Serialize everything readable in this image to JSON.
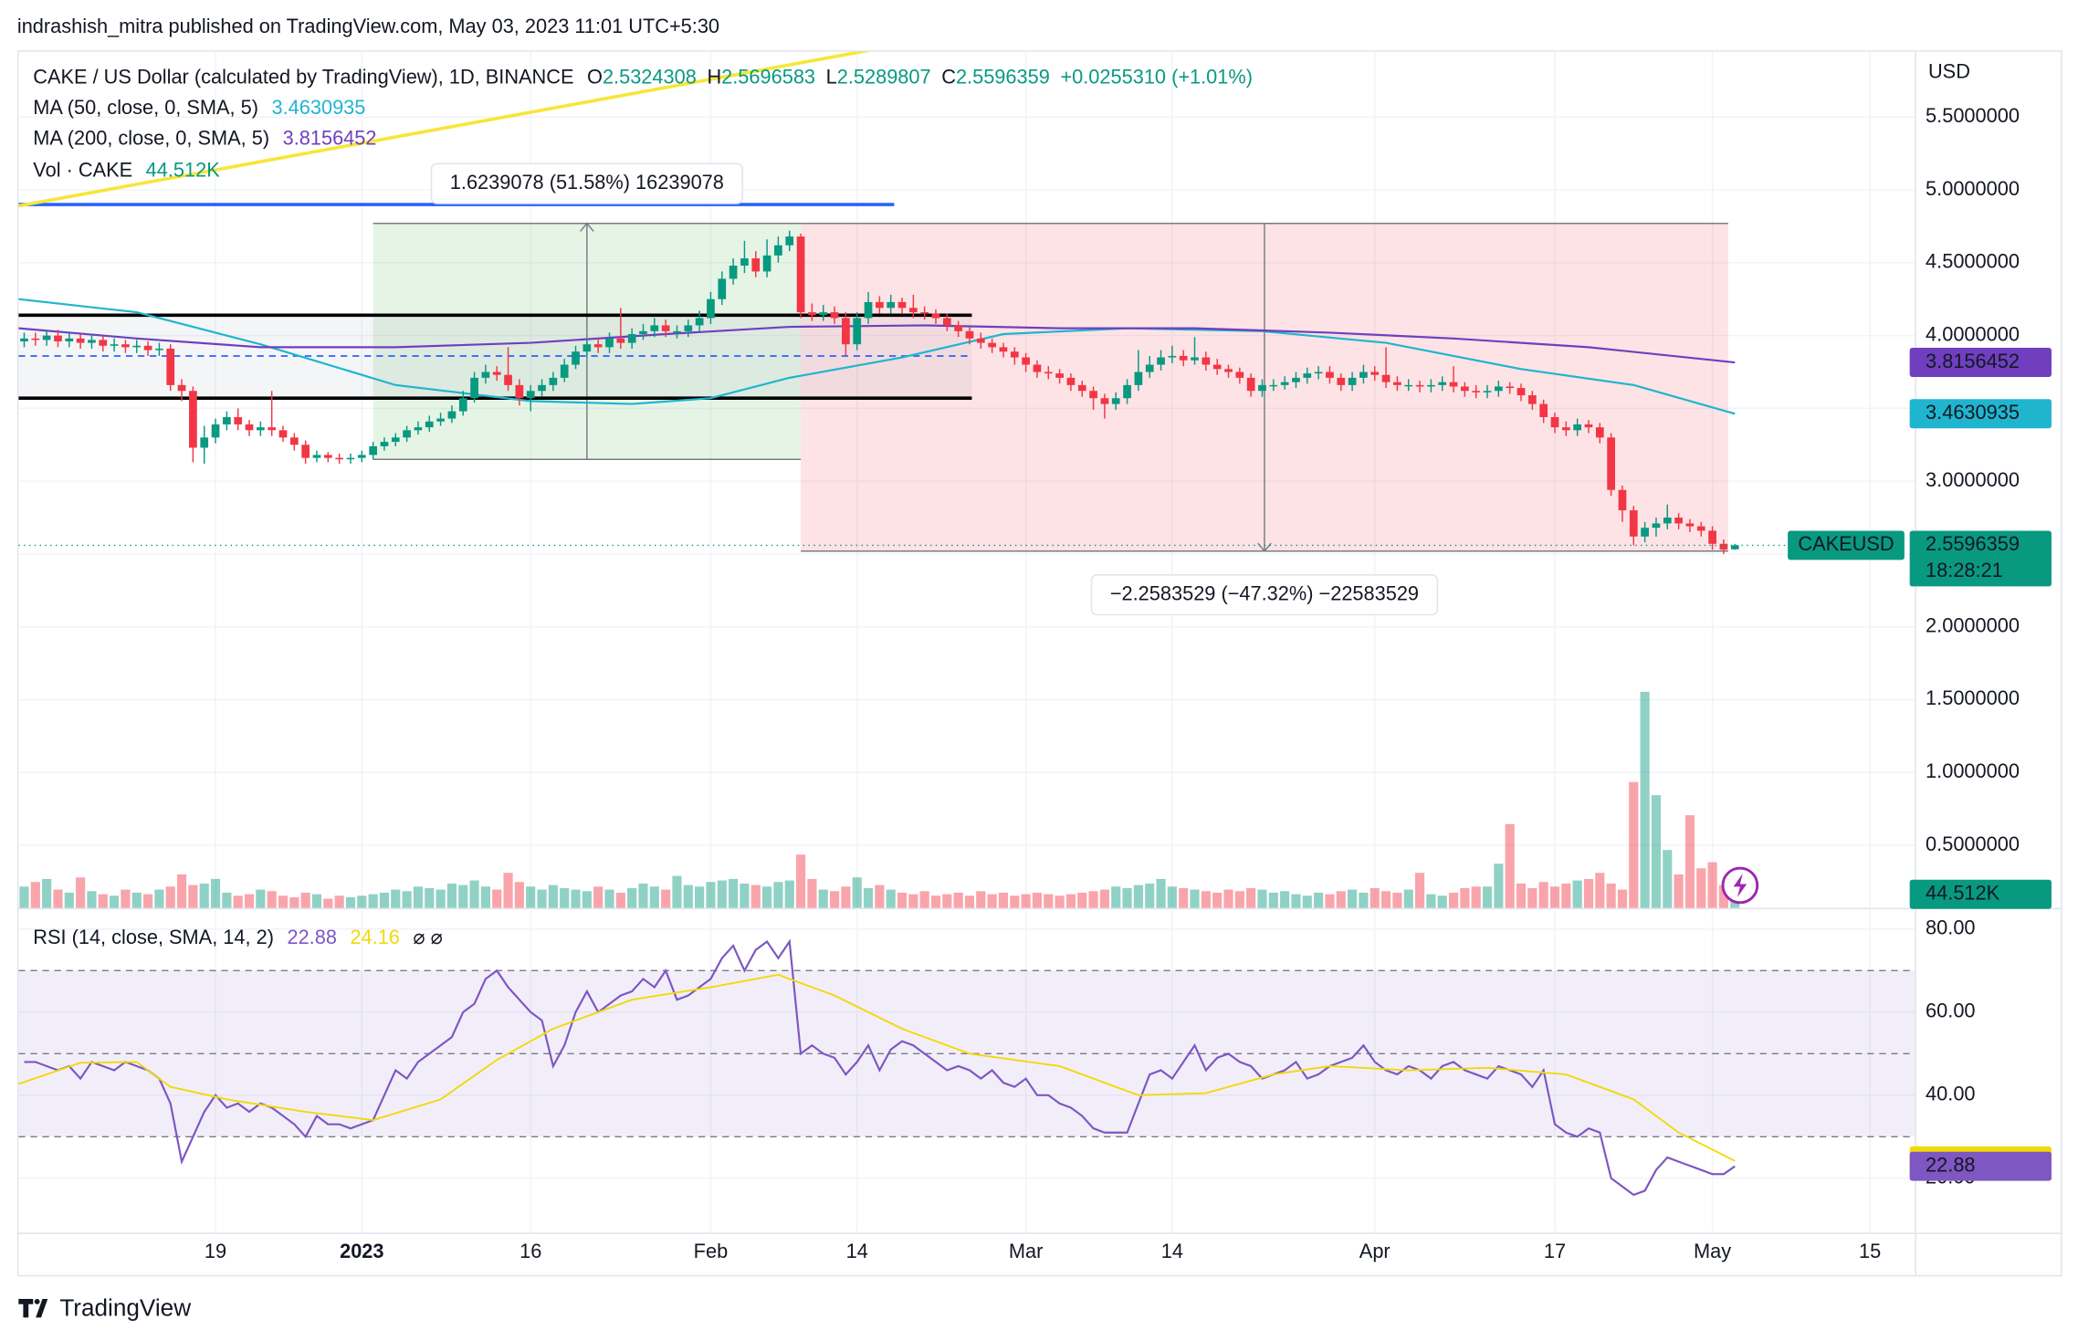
{
  "header": {
    "published": "indrashish_mitra published on TradingView.com, May 03, 2023 11:01 UTC+5:30",
    "brand": "TradingView"
  },
  "chart_data": {
    "type": "candlestick",
    "title": "CAKE / US Dollar (calculated by TradingView), 1D, BINANCE",
    "ohlc_labels": [
      "O",
      "H",
      "L",
      "C"
    ],
    "change_label": "+0.0255310 (+1.01%)",
    "currency": "USD",
    "symbol": "CAKEUSD",
    "countdown": "18:28:21",
    "up_color": "#089981",
    "down_color": "#f23645",
    "grid": true,
    "xlim": [
      -0.5,
      168
    ],
    "xticks": [
      {
        "value": 17,
        "label": "19"
      },
      {
        "value": 30,
        "label": "2023"
      },
      {
        "value": 45,
        "label": "16"
      },
      {
        "value": 61,
        "label": "Feb"
      },
      {
        "value": 74,
        "label": "14"
      },
      {
        "value": 89,
        "label": "Mar"
      },
      {
        "value": 102,
        "label": "14"
      },
      {
        "value": 120,
        "label": "Apr"
      },
      {
        "value": 136,
        "label": "17"
      },
      {
        "value": 150,
        "label": "May"
      },
      {
        "value": 164,
        "label": "15"
      }
    ],
    "ylim": [
      0.07,
      5.94
    ],
    "yticks": [
      {
        "value": 0.5,
        "label": "0.5000000"
      },
      {
        "value": 1,
        "label": "1.0000000"
      },
      {
        "value": 1.5,
        "label": "1.5000000"
      },
      {
        "value": 2,
        "label": "2.0000000"
      },
      {
        "value": 2.5,
        "label": "2.5000000"
      },
      {
        "value": 3,
        "label": "3.0000000"
      },
      {
        "value": 3.5,
        "label": "3.5000000"
      },
      {
        "value": 4,
        "label": "4.0000000"
      },
      {
        "value": 4.5,
        "label": "4.5000000"
      },
      {
        "value": 5,
        "label": "5.0000000"
      },
      {
        "value": 5.5,
        "label": "5.5000000"
      }
    ],
    "open": [
      3.96,
      3.98,
      3.97,
      4.0,
      3.96,
      3.98,
      3.95,
      3.97,
      3.93,
      3.94,
      3.92,
      3.93,
      3.9,
      3.91,
      3.66,
      3.62,
      3.23,
      3.3,
      3.39,
      3.44,
      3.39,
      3.35,
      3.37,
      3.35,
      3.3,
      3.25,
      3.16,
      3.18,
      3.16,
      3.15,
      3.16,
      3.18,
      3.24,
      3.27,
      3.3,
      3.35,
      3.37,
      3.41,
      3.43,
      3.48,
      3.57,
      3.71,
      3.75,
      3.73,
      3.66,
      3.57,
      3.62,
      3.66,
      3.71,
      3.8,
      3.89,
      3.94,
      3.92,
      3.98,
      3.95,
      4.01,
      4.03,
      4.07,
      4.03,
      4.03,
      4.07,
      4.12,
      4.25,
      4.39,
      4.48,
      4.53,
      4.44,
      4.55,
      4.62,
      4.68,
      4.16,
      4.14,
      4.16,
      4.12,
      3.94,
      4.12,
      4.23,
      4.19,
      4.23,
      4.19,
      4.16,
      4.15,
      4.12,
      4.07,
      4.03,
      3.98,
      3.95,
      3.92,
      3.89,
      3.85,
      3.8,
      3.75,
      3.74,
      3.71,
      3.66,
      3.62,
      3.57,
      3.53,
      3.57,
      3.66,
      3.75,
      3.8,
      3.85,
      3.86,
      3.83,
      3.85,
      3.8,
      3.77,
      3.75,
      3.71,
      3.62,
      3.66,
      3.66,
      3.68,
      3.71,
      3.74,
      3.75,
      3.71,
      3.66,
      3.71,
      3.75,
      3.73,
      3.68,
      3.66,
      3.66,
      3.65,
      3.66,
      3.68,
      3.65,
      3.62,
      3.61,
      3.62,
      3.65,
      3.64,
      3.59,
      3.53,
      3.44,
      3.37,
      3.35,
      3.39,
      3.37,
      3.3,
      2.94,
      2.8,
      2.62,
      2.68,
      2.71,
      2.75,
      2.71,
      2.69,
      2.66,
      2.57,
      2.5324308
    ],
    "high": [
      4.02,
      4.02,
      4.04,
      4.04,
      4.02,
      4.01,
      4.01,
      4.0,
      3.98,
      3.97,
      3.97,
      3.96,
      3.95,
      3.94,
      3.7,
      3.65,
      3.38,
      3.43,
      3.48,
      3.5,
      3.42,
      3.41,
      3.62,
      3.38,
      3.33,
      3.28,
      3.21,
      3.2,
      3.19,
      3.19,
      3.21,
      3.27,
      3.3,
      3.33,
      3.38,
      3.41,
      3.45,
      3.47,
      3.52,
      3.62,
      3.75,
      3.8,
      3.79,
      3.92,
      3.7,
      3.66,
      3.7,
      3.75,
      3.84,
      3.93,
      3.98,
      3.98,
      4.02,
      4.19,
      4.05,
      4.08,
      4.12,
      4.11,
      4.07,
      4.11,
      4.17,
      4.3,
      4.44,
      4.53,
      4.65,
      4.58,
      4.66,
      4.68,
      4.72,
      4.7,
      4.22,
      4.21,
      4.2,
      4.16,
      4.16,
      4.3,
      4.27,
      4.28,
      4.26,
      4.28,
      4.2,
      4.18,
      4.15,
      4.1,
      4.06,
      4.02,
      3.98,
      3.95,
      3.92,
      3.88,
      3.83,
      3.79,
      3.77,
      3.74,
      3.69,
      3.65,
      3.6,
      3.61,
      3.7,
      3.9,
      3.86,
      3.9,
      3.93,
      3.9,
      3.99,
      3.89,
      3.84,
      3.8,
      3.78,
      3.74,
      3.7,
      3.7,
      3.72,
      3.75,
      3.78,
      3.79,
      3.79,
      3.74,
      3.75,
      3.8,
      3.79,
      3.92,
      3.72,
      3.7,
      3.69,
      3.7,
      3.72,
      3.79,
      3.68,
      3.66,
      3.66,
      3.69,
      3.68,
      3.67,
      3.62,
      3.56,
      3.47,
      3.41,
      3.43,
      3.42,
      3.4,
      3.33,
      2.97,
      2.83,
      2.72,
      2.75,
      2.84,
      2.78,
      2.74,
      2.72,
      2.69,
      2.6,
      2.5696583
    ],
    "low": [
      3.92,
      3.93,
      3.93,
      3.92,
      3.92,
      3.91,
      3.91,
      3.89,
      3.89,
      3.88,
      3.88,
      3.86,
      3.86,
      3.62,
      3.55,
      3.13,
      3.12,
      3.26,
      3.35,
      3.35,
      3.31,
      3.31,
      3.31,
      3.27,
      3.21,
      3.12,
      3.13,
      3.13,
      3.12,
      3.12,
      3.13,
      3.15,
      3.21,
      3.24,
      3.27,
      3.32,
      3.34,
      3.38,
      3.4,
      3.45,
      3.54,
      3.67,
      3.69,
      3.62,
      3.52,
      3.48,
      3.58,
      3.62,
      3.68,
      3.77,
      3.85,
      3.88,
      3.88,
      3.91,
      3.91,
      3.97,
      3.99,
      3.99,
      3.98,
      3.99,
      4.03,
      4.08,
      4.21,
      4.35,
      4.43,
      4.4,
      4.4,
      4.5,
      4.58,
      4.12,
      4.1,
      4.1,
      4.08,
      3.86,
      3.9,
      4.08,
      4.15,
      4.15,
      4.15,
      4.12,
      4.11,
      4.08,
      4.03,
      3.99,
      3.94,
      3.91,
      3.88,
      3.85,
      3.8,
      3.75,
      3.71,
      3.7,
      3.67,
      3.62,
      3.58,
      3.49,
      3.43,
      3.49,
      3.53,
      3.62,
      3.71,
      3.76,
      3.81,
      3.79,
      3.8,
      3.76,
      3.73,
      3.71,
      3.67,
      3.58,
      3.58,
      3.62,
      3.63,
      3.64,
      3.67,
      3.7,
      3.67,
      3.62,
      3.62,
      3.67,
      3.69,
      3.64,
      3.62,
      3.62,
      3.61,
      3.61,
      3.62,
      3.61,
      3.58,
      3.57,
      3.57,
      3.58,
      3.6,
      3.55,
      3.49,
      3.4,
      3.33,
      3.31,
      3.31,
      3.33,
      3.26,
      2.9,
      2.72,
      2.56,
      2.58,
      2.62,
      2.67,
      2.67,
      2.65,
      2.62,
      2.53,
      2.5,
      2.5289807
    ],
    "close": [
      3.98,
      3.97,
      4.0,
      3.96,
      3.98,
      3.95,
      3.97,
      3.93,
      3.94,
      3.92,
      3.93,
      3.9,
      3.91,
      3.66,
      3.62,
      3.23,
      3.3,
      3.39,
      3.44,
      3.39,
      3.35,
      3.37,
      3.35,
      3.3,
      3.25,
      3.16,
      3.18,
      3.16,
      3.15,
      3.16,
      3.18,
      3.24,
      3.27,
      3.3,
      3.35,
      3.37,
      3.41,
      3.43,
      3.48,
      3.57,
      3.71,
      3.75,
      3.73,
      3.66,
      3.57,
      3.62,
      3.66,
      3.71,
      3.8,
      3.89,
      3.94,
      3.92,
      3.98,
      3.95,
      4.01,
      4.03,
      4.07,
      4.03,
      4.03,
      4.07,
      4.12,
      4.25,
      4.39,
      4.48,
      4.53,
      4.44,
      4.55,
      4.62,
      4.68,
      4.16,
      4.14,
      4.16,
      4.12,
      3.94,
      4.12,
      4.23,
      4.19,
      4.23,
      4.19,
      4.16,
      4.15,
      4.12,
      4.07,
      4.03,
      3.98,
      3.95,
      3.92,
      3.89,
      3.85,
      3.8,
      3.75,
      3.74,
      3.71,
      3.66,
      3.62,
      3.57,
      3.53,
      3.57,
      3.66,
      3.75,
      3.8,
      3.85,
      3.86,
      3.83,
      3.85,
      3.8,
      3.77,
      3.75,
      3.71,
      3.62,
      3.66,
      3.66,
      3.68,
      3.71,
      3.74,
      3.75,
      3.71,
      3.66,
      3.71,
      3.75,
      3.73,
      3.68,
      3.66,
      3.66,
      3.65,
      3.66,
      3.68,
      3.65,
      3.62,
      3.61,
      3.62,
      3.65,
      3.64,
      3.59,
      3.53,
      3.44,
      3.37,
      3.35,
      3.39,
      3.37,
      3.3,
      2.94,
      2.8,
      2.62,
      2.68,
      2.71,
      2.75,
      2.71,
      2.69,
      2.66,
      2.57,
      2.53,
      2.5596359
    ],
    "moving_averages": [
      {
        "name": "MA (50, close, 0, SMA, 5)",
        "color": "#1fb5cf",
        "x": [
          -0.5,
          10,
          21,
          33,
          45,
          54,
          61,
          68,
          78,
          87,
          98,
          110,
          121,
          133,
          143,
          152
        ],
        "values": [
          4.25,
          4.16,
          3.94,
          3.66,
          3.55,
          3.53,
          3.57,
          3.71,
          3.85,
          4.01,
          4.05,
          4.03,
          3.95,
          3.77,
          3.66,
          3.4630935
        ]
      },
      {
        "name": "MA (200, close, 0, SMA, 5)",
        "color": "#6f3fbf",
        "x": [
          -0.5,
          10,
          21,
          33,
          45,
          57,
          68,
          80,
          92,
          104,
          116,
          127,
          139,
          152
        ],
        "values": [
          4.05,
          3.98,
          3.92,
          3.92,
          3.95,
          4.01,
          4.06,
          4.07,
          4.05,
          4.05,
          4.02,
          3.98,
          3.92,
          3.8156452
        ]
      }
    ],
    "volume": {
      "name": "Vol · CAKE",
      "ylim": [
        0,
        1000
      ],
      "last_value_label": "44.512K",
      "values": [
        70,
        85,
        95,
        60,
        50,
        100,
        55,
        45,
        40,
        60,
        50,
        45,
        60,
        70,
        110,
        75,
        80,
        95,
        50,
        40,
        45,
        60,
        55,
        40,
        35,
        50,
        45,
        30,
        40,
        35,
        40,
        45,
        50,
        60,
        55,
        70,
        65,
        60,
        80,
        75,
        90,
        70,
        60,
        115,
        85,
        70,
        60,
        75,
        65,
        60,
        55,
        70,
        60,
        50,
        65,
        80,
        70,
        60,
        105,
        75,
        70,
        85,
        90,
        95,
        80,
        75,
        70,
        85,
        90,
        175,
        95,
        60,
        55,
        70,
        100,
        65,
        75,
        60,
        50,
        45,
        55,
        40,
        45,
        50,
        40,
        55,
        45,
        50,
        40,
        45,
        50,
        45,
        40,
        45,
        50,
        55,
        60,
        70,
        65,
        75,
        80,
        95,
        70,
        65,
        60,
        55,
        50,
        60,
        55,
        65,
        60,
        50,
        55,
        45,
        40,
        50,
        45,
        55,
        60,
        50,
        65,
        55,
        50,
        60,
        115,
        45,
        40,
        50,
        65,
        70,
        70,
        145,
        275,
        80,
        65,
        85,
        70,
        80,
        90,
        95,
        115,
        80,
        60,
        413,
        709,
        370,
        190,
        110,
        304,
        130,
        150,
        75,
        44.512
      ]
    },
    "rsi": {
      "name": "RSI (14, close, SMA, 14, 2)",
      "color": "#7e57c2",
      "extra": "⌀  ⌀",
      "ylim": [
        6.9,
        85.1
      ],
      "yticks": [
        {
          "value": 20,
          "label": "20.00"
        },
        {
          "value": 40,
          "label": "40.00"
        },
        {
          "value": 60,
          "label": "60.00"
        },
        {
          "value": 80,
          "label": "80.00"
        }
      ],
      "bands": [
        70,
        50,
        30
      ],
      "values": [
        48,
        48,
        47,
        46,
        47,
        44,
        48,
        47,
        46,
        48,
        47,
        46,
        44,
        38,
        24,
        30,
        36,
        40,
        37,
        38,
        36,
        38,
        37,
        35,
        33,
        30,
        35,
        33,
        33,
        32,
        33,
        34,
        40,
        46,
        44,
        48,
        50,
        52,
        54,
        60,
        62,
        68,
        70,
        66,
        63,
        60,
        58,
        47,
        52,
        60,
        65,
        60,
        62,
        64,
        65,
        68,
        66,
        70,
        63,
        64,
        66,
        68,
        73,
        76,
        70,
        75,
        77,
        73,
        77,
        50,
        52,
        50,
        49,
        45,
        48,
        52,
        46,
        51,
        53,
        52,
        50,
        48,
        46,
        47,
        46,
        44,
        46,
        43,
        42,
        44,
        40,
        40,
        38,
        37,
        35,
        32,
        31,
        31,
        31,
        38,
        45,
        46,
        44,
        48,
        52,
        46,
        49,
        50,
        48,
        47,
        44,
        45,
        46,
        48,
        44,
        45,
        47,
        48,
        49,
        52,
        48,
        46,
        45,
        47,
        46,
        44,
        47,
        48,
        46,
        45,
        44,
        47,
        46,
        45,
        42,
        46,
        33,
        31,
        30,
        32,
        31,
        20,
        18,
        16,
        17,
        22,
        25,
        24,
        23,
        22,
        21,
        21,
        22.88
      ],
      "sma": {
        "color": "#f2d90a",
        "x": [
          -0.5,
          5,
          10,
          13,
          18,
          25,
          31,
          37,
          42,
          47,
          54,
          61,
          67,
          72,
          78,
          84,
          92,
          99,
          105,
          111,
          116,
          123,
          130,
          137,
          143,
          147,
          152
        ],
        "values": [
          42.7,
          47.8,
          48,
          42,
          39,
          36,
          34,
          39,
          48.5,
          56,
          63,
          66,
          69,
          64,
          56,
          50,
          47,
          40,
          40.5,
          45,
          47,
          46,
          46.6,
          45,
          39,
          31,
          24.16
        ]
      }
    },
    "drawings": [
      {
        "kind": "range",
        "color": "#4caf50",
        "x": [
          31,
          69
        ],
        "y": [
          3.15,
          4.77
        ],
        "label": "1.6239078 (51.58%) 16239078"
      },
      {
        "kind": "range",
        "color": "#f23645",
        "x": [
          69,
          151.4
        ],
        "y": [
          4.77,
          2.52
        ],
        "label": "−2.2583529 (−47.32%) −22583529"
      },
      {
        "kind": "channel",
        "color": "#000000",
        "mid_color": "#2962ff",
        "x": [
          -0.5,
          84.2
        ],
        "y": [
          3.57,
          4.14
        ],
        "mid": 3.86
      },
      {
        "kind": "line",
        "color": "#2962ff",
        "x": [
          -0.5,
          77.3
        ],
        "y": [
          4.9,
          4.9
        ]
      },
      {
        "kind": "line",
        "color": "#f7e63a",
        "x": [
          -0.5,
          77.3
        ],
        "y": [
          4.89,
          5.99
        ]
      }
    ]
  }
}
